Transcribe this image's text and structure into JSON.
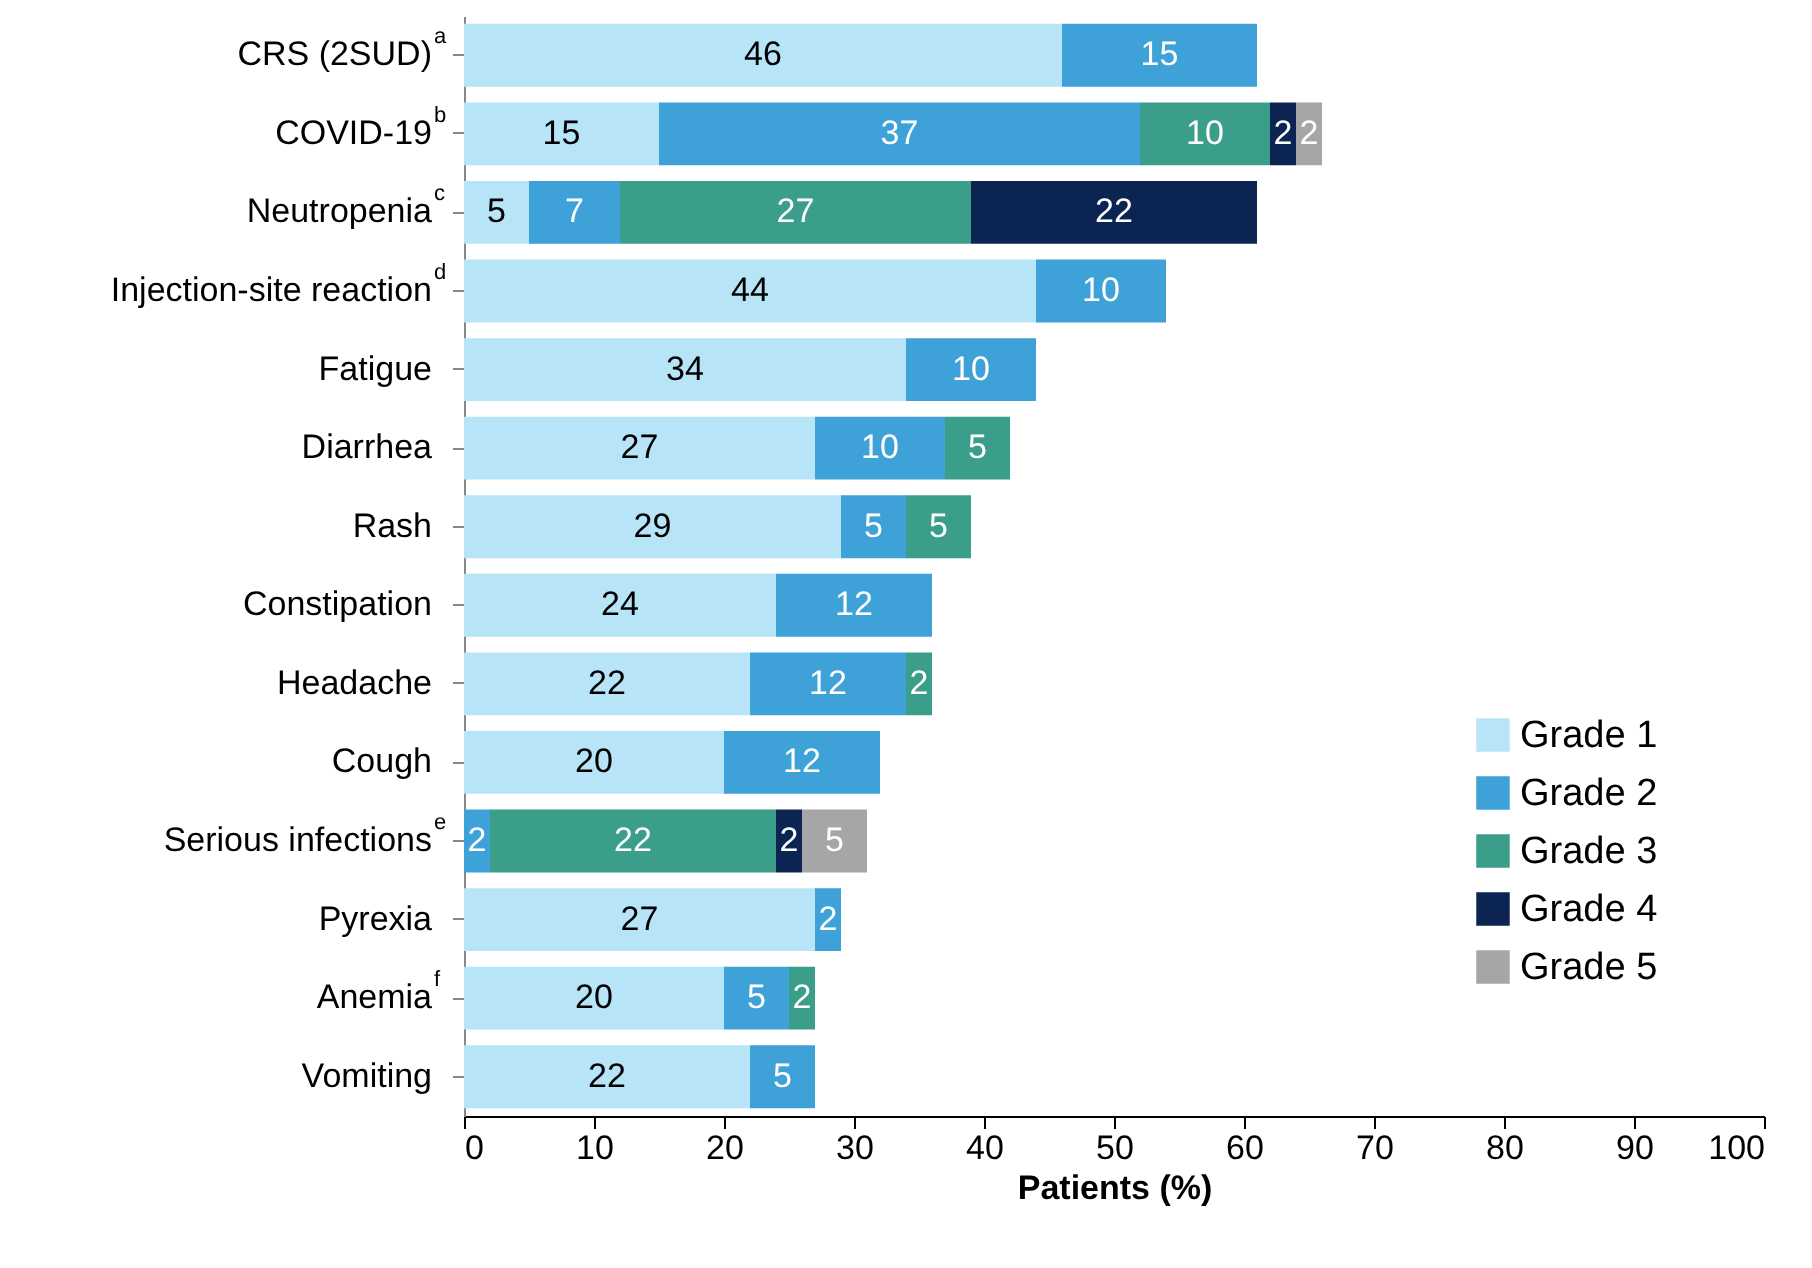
{
  "chart_data": {
    "type": "bar",
    "orientation": "horizontal",
    "stacked": true,
    "xlabel": "Patients (%)",
    "categories": [
      "CRS (2SUD)$^{a}$",
      "COVID-19$^{b}$",
      "Neutropenia$^{c}$",
      "Injection-site reaction$^{d}$",
      "Fatigue",
      "Diarrhea",
      "Rash",
      "Constipation",
      "Headache",
      "Cough",
      "Serious infections$^{e}$",
      "Pyrexia",
      "Anemia$^{f}$",
      "Vomiting"
    ],
    "series": [
      {
        "name": "Grade 1",
        "color": "#b7e4f7",
        "values": [
          46,
          15,
          5,
          44,
          34,
          27,
          29,
          24,
          22,
          20,
          null,
          27,
          20,
          22
        ]
      },
      {
        "name": "Grade 2",
        "color": "#3ea2d9",
        "values": [
          15,
          37,
          7,
          10,
          10,
          10,
          5,
          12,
          12,
          12,
          2,
          2,
          5,
          5
        ]
      },
      {
        "name": "Grade 3",
        "color": "#3a9e8b",
        "values": [
          null,
          10,
          27,
          null,
          null,
          5,
          5,
          null,
          2,
          null,
          22,
          null,
          2,
          null
        ]
      },
      {
        "name": "Grade 4",
        "color": "#0b2452",
        "values": [
          null,
          2,
          22,
          null,
          null,
          null,
          null,
          null,
          null,
          null,
          2,
          null,
          null,
          null
        ]
      },
      {
        "name": "Grade 5",
        "color": "#a6a6a6",
        "values": [
          null,
          2,
          null,
          null,
          null,
          null,
          null,
          null,
          null,
          null,
          5,
          null,
          null,
          null
        ]
      }
    ],
    "xlim": [
      0,
      100
    ],
    "xticks": [
      0,
      10,
      20,
      30,
      40,
      50,
      60,
      70,
      80,
      90,
      100
    ],
    "data_labels": true,
    "legend": "bottom right",
    "grid": false
  }
}
